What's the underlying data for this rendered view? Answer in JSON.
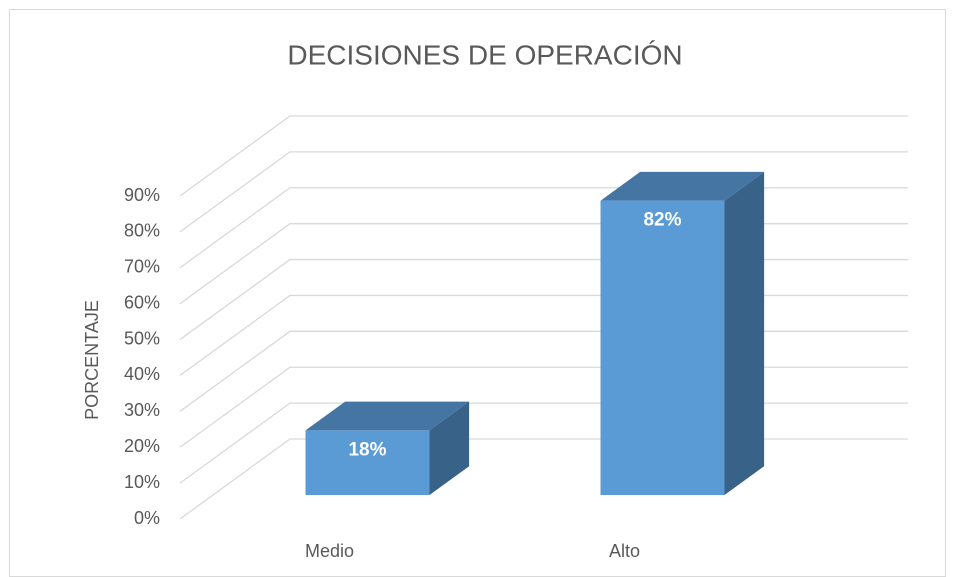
{
  "chart_data": {
    "type": "bar3d",
    "title": "DECISIONES DE OPERACIÓN",
    "ylabel": "PORCENTAJE",
    "categories": [
      "Medio",
      "Alto"
    ],
    "values": [
      18,
      82
    ],
    "value_labels": [
      "18%",
      "82%"
    ],
    "color": "#5b9bd5",
    "ylim": [
      0,
      90
    ],
    "yticks": [
      {
        "value": 0,
        "label": "0%"
      },
      {
        "value": 10,
        "label": "10%"
      },
      {
        "value": 20,
        "label": "20%"
      },
      {
        "value": 30,
        "label": "30%"
      },
      {
        "value": 40,
        "label": "40%"
      },
      {
        "value": 50,
        "label": "50%"
      },
      {
        "value": 60,
        "label": "60%"
      },
      {
        "value": 70,
        "label": "70%"
      },
      {
        "value": 80,
        "label": "80%"
      },
      {
        "value": 90,
        "label": "90%"
      }
    ],
    "grid": true
  }
}
